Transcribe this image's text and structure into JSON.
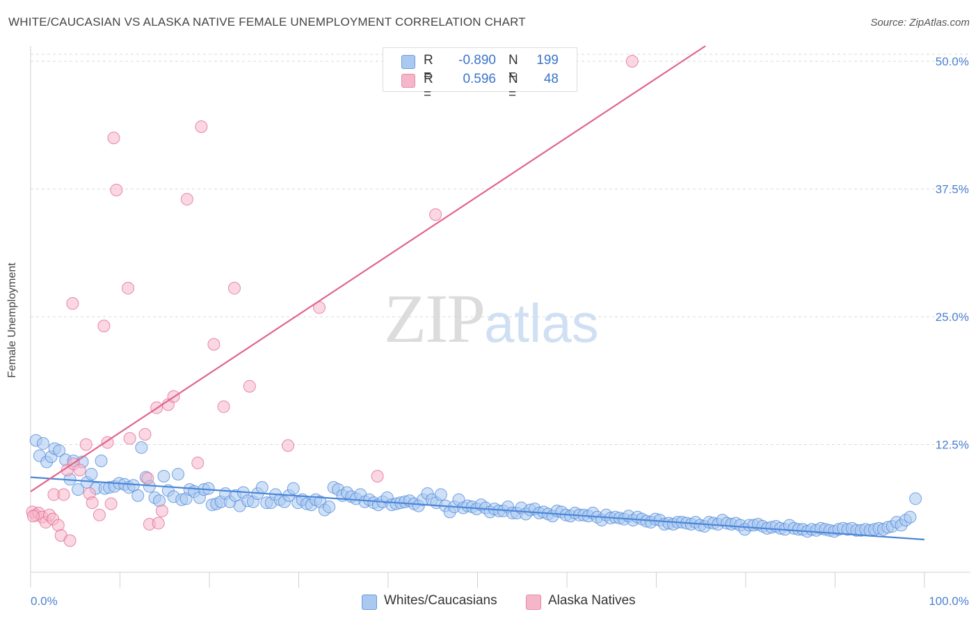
{
  "header": {
    "title": "WHITE/CAUCASIAN VS ALASKA NATIVE FEMALE UNEMPLOYMENT CORRELATION CHART",
    "source": "Source: ZipAtlas.com"
  },
  "watermark": {
    "zip": "ZIP",
    "atlas": "atlas"
  },
  "legend": {
    "rows": [
      {
        "r_label": "R =",
        "r_value": "-0.890",
        "n_label": "N =",
        "n_value": "199",
        "color": "#a9c9f0"
      },
      {
        "r_label": "R =",
        "r_value": "0.596",
        "n_label": "N =",
        "n_value": "48",
        "color": "#f6b6ca"
      }
    ]
  },
  "bottom_legend": {
    "items": [
      {
        "label": "Whites/Caucasians",
        "color": "#a9c9f0"
      },
      {
        "label": "Alaska Natives",
        "color": "#f6b6ca"
      }
    ]
  },
  "chart_data": {
    "type": "scatter",
    "title": "WHITE/CAUCASIAN VS ALASKA NATIVE FEMALE UNEMPLOYMENT CORRELATION CHART",
    "xlabel": "",
    "ylabel": "Female Unemployment",
    "xlim": [
      0,
      100
    ],
    "ylim": [
      0,
      51.5
    ],
    "x_tick_labels": [
      "0.0%",
      "100.0%"
    ],
    "y_ticks": [
      12.5,
      25.0,
      37.5,
      50.0
    ],
    "y_tick_labels": [
      "12.5%",
      "25.0%",
      "37.5%",
      "50.0%"
    ],
    "grid": "horizontal dashed",
    "legend_placement": "top-center",
    "series": [
      {
        "name": "Whites/Caucasians",
        "color": "#4a86d8",
        "fill": "#a9c9f0",
        "trendline": {
          "x": [
            0,
            100
          ],
          "y": [
            9.3,
            3.2
          ]
        },
        "points": [
          [
            0.6,
            12.9
          ],
          [
            1.0,
            11.4
          ],
          [
            1.4,
            12.6
          ],
          [
            1.8,
            10.8
          ],
          [
            2.3,
            11.3
          ],
          [
            2.7,
            12.1
          ],
          [
            3.2,
            11.9
          ],
          [
            3.9,
            11.0
          ],
          [
            4.4,
            9.1
          ],
          [
            4.8,
            10.9
          ],
          [
            5.3,
            8.1
          ],
          [
            5.8,
            10.8
          ],
          [
            6.3,
            8.8
          ],
          [
            6.8,
            9.6
          ],
          [
            7.3,
            8.2
          ],
          [
            7.9,
            10.9
          ],
          [
            8.3,
            8.2
          ],
          [
            8.8,
            8.3
          ],
          [
            9.4,
            8.4
          ],
          [
            9.9,
            8.7
          ],
          [
            10.5,
            8.6
          ],
          [
            11.0,
            8.3
          ],
          [
            11.5,
            8.5
          ],
          [
            12.0,
            7.5
          ],
          [
            12.4,
            12.2
          ],
          [
            12.9,
            9.3
          ],
          [
            13.3,
            8.4
          ],
          [
            13.9,
            7.3
          ],
          [
            14.4,
            7.0
          ],
          [
            14.9,
            9.4
          ],
          [
            15.4,
            8.0
          ],
          [
            16.0,
            7.4
          ],
          [
            16.5,
            9.6
          ],
          [
            16.9,
            7.1
          ],
          [
            17.4,
            7.2
          ],
          [
            17.8,
            8.1
          ],
          [
            18.3,
            7.9
          ],
          [
            18.9,
            7.3
          ],
          [
            19.4,
            8.1
          ],
          [
            19.9,
            8.2
          ],
          [
            20.3,
            6.6
          ],
          [
            20.8,
            6.7
          ],
          [
            21.3,
            6.9
          ],
          [
            21.8,
            7.7
          ],
          [
            22.3,
            6.9
          ],
          [
            22.9,
            7.5
          ],
          [
            23.4,
            6.5
          ],
          [
            23.8,
            7.8
          ],
          [
            24.3,
            7.0
          ],
          [
            24.9,
            6.9
          ],
          [
            25.4,
            7.7
          ],
          [
            25.9,
            8.3
          ],
          [
            26.4,
            6.8
          ],
          [
            26.9,
            6.8
          ],
          [
            27.4,
            7.6
          ],
          [
            27.9,
            7.1
          ],
          [
            28.4,
            6.9
          ],
          [
            28.9,
            7.5
          ],
          [
            29.4,
            8.2
          ],
          [
            29.9,
            6.8
          ],
          [
            30.4,
            7.1
          ],
          [
            30.9,
            6.7
          ],
          [
            31.4,
            6.6
          ],
          [
            31.9,
            7.1
          ],
          [
            32.4,
            6.9
          ],
          [
            32.9,
            6.1
          ],
          [
            33.4,
            6.4
          ],
          [
            33.9,
            8.3
          ],
          [
            34.4,
            8.1
          ],
          [
            34.9,
            7.5
          ],
          [
            35.4,
            7.8
          ],
          [
            35.9,
            7.4
          ],
          [
            36.4,
            7.2
          ],
          [
            36.9,
            7.6
          ],
          [
            37.4,
            6.9
          ],
          [
            37.9,
            7.1
          ],
          [
            38.4,
            6.8
          ],
          [
            38.9,
            6.6
          ],
          [
            39.4,
            6.9
          ],
          [
            39.9,
            7.3
          ],
          [
            40.4,
            6.6
          ],
          [
            40.9,
            6.7
          ],
          [
            41.4,
            6.8
          ],
          [
            41.9,
            6.9
          ],
          [
            42.4,
            7.0
          ],
          [
            42.9,
            6.7
          ],
          [
            43.4,
            6.5
          ],
          [
            43.9,
            7.1
          ],
          [
            44.4,
            7.7
          ],
          [
            44.9,
            7.1
          ],
          [
            45.4,
            6.8
          ],
          [
            45.9,
            7.6
          ],
          [
            46.4,
            6.5
          ],
          [
            46.9,
            5.9
          ],
          [
            47.4,
            6.4
          ],
          [
            47.9,
            7.1
          ],
          [
            48.4,
            6.3
          ],
          [
            48.9,
            6.5
          ],
          [
            49.4,
            6.4
          ],
          [
            49.9,
            6.2
          ],
          [
            50.4,
            6.6
          ],
          [
            50.9,
            6.3
          ],
          [
            51.4,
            5.9
          ],
          [
            51.9,
            6.2
          ],
          [
            52.4,
            6.0
          ],
          [
            52.9,
            6.0
          ],
          [
            53.4,
            6.4
          ],
          [
            53.9,
            5.8
          ],
          [
            54.4,
            5.8
          ],
          [
            54.9,
            6.3
          ],
          [
            55.4,
            5.7
          ],
          [
            55.9,
            6.1
          ],
          [
            56.4,
            6.2
          ],
          [
            56.9,
            5.8
          ],
          [
            57.4,
            5.9
          ],
          [
            57.9,
            5.7
          ],
          [
            58.4,
            5.5
          ],
          [
            58.9,
            6.0
          ],
          [
            59.4,
            5.9
          ],
          [
            59.9,
            5.6
          ],
          [
            60.4,
            5.5
          ],
          [
            60.9,
            5.8
          ],
          [
            61.4,
            5.6
          ],
          [
            61.9,
            5.6
          ],
          [
            62.4,
            5.5
          ],
          [
            62.9,
            5.8
          ],
          [
            63.4,
            5.4
          ],
          [
            63.9,
            5.1
          ],
          [
            64.4,
            5.6
          ],
          [
            64.9,
            5.3
          ],
          [
            65.4,
            5.4
          ],
          [
            65.9,
            5.3
          ],
          [
            66.4,
            5.2
          ],
          [
            66.9,
            5.5
          ],
          [
            67.4,
            5.1
          ],
          [
            67.9,
            5.4
          ],
          [
            68.4,
            5.2
          ],
          [
            68.9,
            5.0
          ],
          [
            69.4,
            4.9
          ],
          [
            69.9,
            5.2
          ],
          [
            70.4,
            5.1
          ],
          [
            70.9,
            4.7
          ],
          [
            71.4,
            4.8
          ],
          [
            71.9,
            4.7
          ],
          [
            72.4,
            4.9
          ],
          [
            72.9,
            4.9
          ],
          [
            73.4,
            4.8
          ],
          [
            73.9,
            4.7
          ],
          [
            74.4,
            4.9
          ],
          [
            74.9,
            4.6
          ],
          [
            75.4,
            4.5
          ],
          [
            75.9,
            4.9
          ],
          [
            76.4,
            4.8
          ],
          [
            76.9,
            4.7
          ],
          [
            77.4,
            5.1
          ],
          [
            77.9,
            4.8
          ],
          [
            78.4,
            4.7
          ],
          [
            78.9,
            4.8
          ],
          [
            79.4,
            4.6
          ],
          [
            79.9,
            4.2
          ],
          [
            80.4,
            4.6
          ],
          [
            80.9,
            4.6
          ],
          [
            81.4,
            4.7
          ],
          [
            81.9,
            4.5
          ],
          [
            82.4,
            4.3
          ],
          [
            82.9,
            4.4
          ],
          [
            83.4,
            4.5
          ],
          [
            83.9,
            4.3
          ],
          [
            84.4,
            4.2
          ],
          [
            84.9,
            4.6
          ],
          [
            85.4,
            4.3
          ],
          [
            85.9,
            4.2
          ],
          [
            86.4,
            4.2
          ],
          [
            86.9,
            4.0
          ],
          [
            87.4,
            4.2
          ],
          [
            87.9,
            4.1
          ],
          [
            88.4,
            4.3
          ],
          [
            88.9,
            4.2
          ],
          [
            89.4,
            4.1
          ],
          [
            89.9,
            4.0
          ],
          [
            90.4,
            4.2
          ],
          [
            90.9,
            4.3
          ],
          [
            91.4,
            4.2
          ],
          [
            91.9,
            4.3
          ],
          [
            92.4,
            4.1
          ],
          [
            92.9,
            4.1
          ],
          [
            93.4,
            4.2
          ],
          [
            93.9,
            4.1
          ],
          [
            94.4,
            4.2
          ],
          [
            94.9,
            4.3
          ],
          [
            95.4,
            4.2
          ],
          [
            95.9,
            4.4
          ],
          [
            96.4,
            4.5
          ],
          [
            96.9,
            4.9
          ],
          [
            97.4,
            4.6
          ],
          [
            97.9,
            5.1
          ],
          [
            98.4,
            5.4
          ],
          [
            99.0,
            7.2
          ]
        ]
      },
      {
        "name": "Alaska Natives",
        "color": "#e0648c",
        "fill": "#f6b6ca",
        "trendline": {
          "x": [
            0,
            75.5
          ],
          "y": [
            7.9,
            51.5
          ]
        },
        "points": [
          [
            0.2,
            5.9
          ],
          [
            0.6,
            5.6
          ],
          [
            0.9,
            5.8
          ],
          [
            1.3,
            5.4
          ],
          [
            1.7,
            4.9
          ],
          [
            2.1,
            5.6
          ],
          [
            2.5,
            5.2
          ],
          [
            2.6,
            7.6
          ],
          [
            3.1,
            4.6
          ],
          [
            3.4,
            3.6
          ],
          [
            3.7,
            7.6
          ],
          [
            4.1,
            10.0
          ],
          [
            4.4,
            3.1
          ],
          [
            4.8,
            10.6
          ],
          [
            4.7,
            26.3
          ],
          [
            5.5,
            10.0
          ],
          [
            6.2,
            12.5
          ],
          [
            6.6,
            7.7
          ],
          [
            6.9,
            6.8
          ],
          [
            7.7,
            5.6
          ],
          [
            8.2,
            24.1
          ],
          [
            8.6,
            12.7
          ],
          [
            9.0,
            6.7
          ],
          [
            9.3,
            42.5
          ],
          [
            9.6,
            37.4
          ],
          [
            10.9,
            27.8
          ],
          [
            11.1,
            13.1
          ],
          [
            12.8,
            13.5
          ],
          [
            13.1,
            9.2
          ],
          [
            13.3,
            4.7
          ],
          [
            14.1,
            16.1
          ],
          [
            14.3,
            4.8
          ],
          [
            14.7,
            6.0
          ],
          [
            15.4,
            16.4
          ],
          [
            16.0,
            17.2
          ],
          [
            17.5,
            36.5
          ],
          [
            18.7,
            10.7
          ],
          [
            19.1,
            43.6
          ],
          [
            20.5,
            22.3
          ],
          [
            21.6,
            16.2
          ],
          [
            22.8,
            27.8
          ],
          [
            24.5,
            18.2
          ],
          [
            28.8,
            12.4
          ],
          [
            32.3,
            25.9
          ],
          [
            38.8,
            9.4
          ],
          [
            45.3,
            35.0
          ],
          [
            67.3,
            50.0
          ],
          [
            0.3,
            5.5
          ]
        ]
      }
    ]
  }
}
